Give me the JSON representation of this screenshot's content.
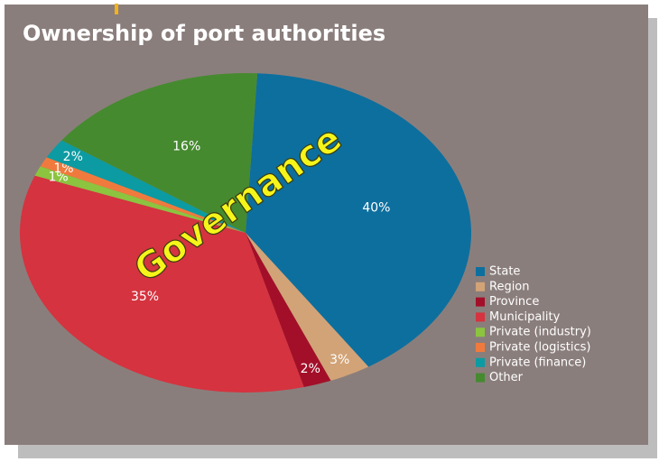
{
  "chart_data": {
    "type": "pie",
    "title": "Ownership of port authorities",
    "annotation": "Governance",
    "categories": [
      "State",
      "Region",
      "Province",
      "Municipality",
      "Private (industry)",
      "Private (logistics)",
      "Private (finance)",
      "Other"
    ],
    "values": [
      40,
      3,
      2,
      35,
      1,
      1,
      2,
      16
    ],
    "value_labels": [
      "40%",
      "3%",
      "2%",
      "35%",
      "1%",
      "1%",
      "2%",
      "16%"
    ],
    "colors": [
      "#0d6f9e",
      "#d2a377",
      "#a30f28",
      "#d5333f",
      "#8cc43f",
      "#f07a3d",
      "#0c9ba2",
      "#468a30"
    ],
    "legend": "right"
  }
}
